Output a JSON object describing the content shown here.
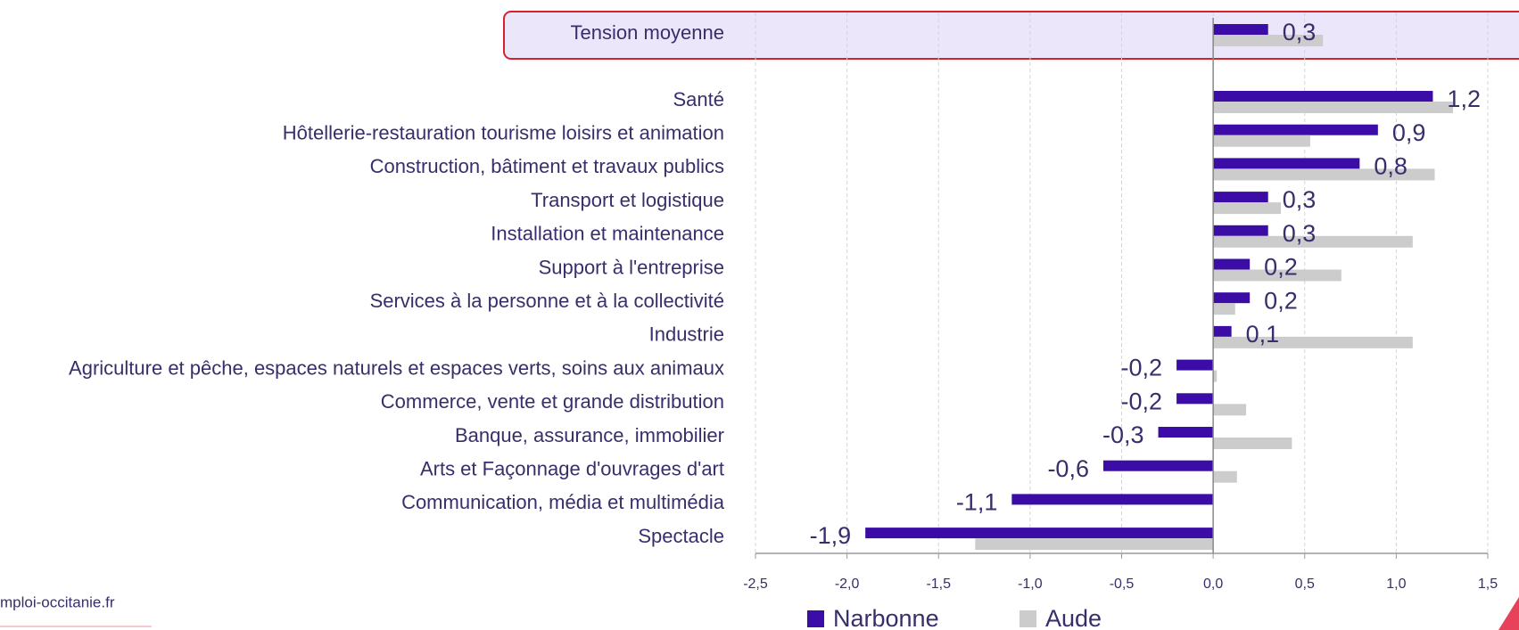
{
  "chart_data": {
    "type": "bar",
    "orientation": "horizontal",
    "categories": [
      "Tension moyenne",
      "Santé",
      "Hôtellerie-restauration tourisme loisirs et animation",
      "Construction, bâtiment et travaux publics",
      "Transport et logistique",
      "Installation et maintenance",
      "Support à l'entreprise",
      "Services à la personne et à la collectivité",
      "Industrie",
      "Agriculture et pêche, espaces naturels et espaces verts, soins aux animaux",
      "Commerce, vente et grande distribution",
      "Banque, assurance, immobilier",
      "Arts et Façonnage d'ouvrages d'art",
      "Communication, média et multimédia",
      "Spectacle"
    ],
    "series": [
      {
        "name": "Narbonne",
        "color": "#3b0ca6",
        "values": [
          0.3,
          1.2,
          0.9,
          0.8,
          0.3,
          0.3,
          0.2,
          0.2,
          0.1,
          -0.2,
          -0.2,
          -0.3,
          -0.6,
          -1.1,
          -1.9
        ],
        "value_labels": [
          "0,3",
          "1,2",
          "0,9",
          "0,8",
          "0,3",
          "0,3",
          "0,2",
          "0,2",
          "0,1",
          "-0,2",
          "-0,2",
          "-0,3",
          "-0,6",
          "-1,1",
          "-1,9"
        ]
      },
      {
        "name": "Aude",
        "color": "#cccccc",
        "values": [
          0.6,
          1.31,
          0.53,
          1.21,
          0.37,
          1.09,
          0.7,
          0.12,
          1.09,
          0.02,
          0.18,
          0.43,
          0.13,
          0,
          -1.3
        ]
      }
    ],
    "xlim": [
      -2.5,
      1.5
    ],
    "xticks": [
      {
        "value": -2.5,
        "label": "-2,5"
      },
      {
        "value": -2,
        "label": "-2,0"
      },
      {
        "value": -1.5,
        "label": "-1,5"
      },
      {
        "value": -1,
        "label": "-1,0"
      },
      {
        "value": -0.5,
        "label": "-0,5"
      },
      {
        "value": 0,
        "label": "0,0"
      },
      {
        "value": 0.5,
        "label": "0,5"
      },
      {
        "value": 1,
        "label": "1,0"
      },
      {
        "value": 1.5,
        "label": "1,5"
      }
    ],
    "grid": true,
    "legend": "bottom",
    "source": "mploi-occitanie.fr"
  }
}
